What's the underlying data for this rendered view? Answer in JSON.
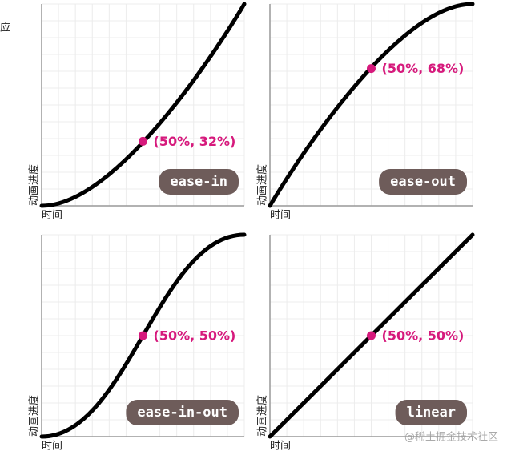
{
  "corner_text": "应",
  "panels": [
    {
      "label": "ease-in",
      "point": {
        "x": 50,
        "y": 32,
        "label": "(50%, 32%)"
      },
      "y_axis_label": "动画进度",
      "x_axis_label": "时间"
    },
    {
      "label": "ease-out",
      "point": {
        "x": 50,
        "y": 68,
        "label": "(50%, 68%)"
      },
      "y_axis_label": "动画进度",
      "x_axis_label": "时间"
    },
    {
      "label": "ease-in-out",
      "point": {
        "x": 50,
        "y": 50,
        "label": "(50%, 50%)"
      },
      "y_axis_label": "动画进度",
      "x_axis_label": "时间"
    },
    {
      "label": "linear",
      "point": {
        "x": 50,
        "y": 50,
        "label": "(50%, 50%)"
      },
      "y_axis_label": "动画进度",
      "x_axis_label": "时间"
    }
  ],
  "watermark": "@稀土掘金技术社区"
}
